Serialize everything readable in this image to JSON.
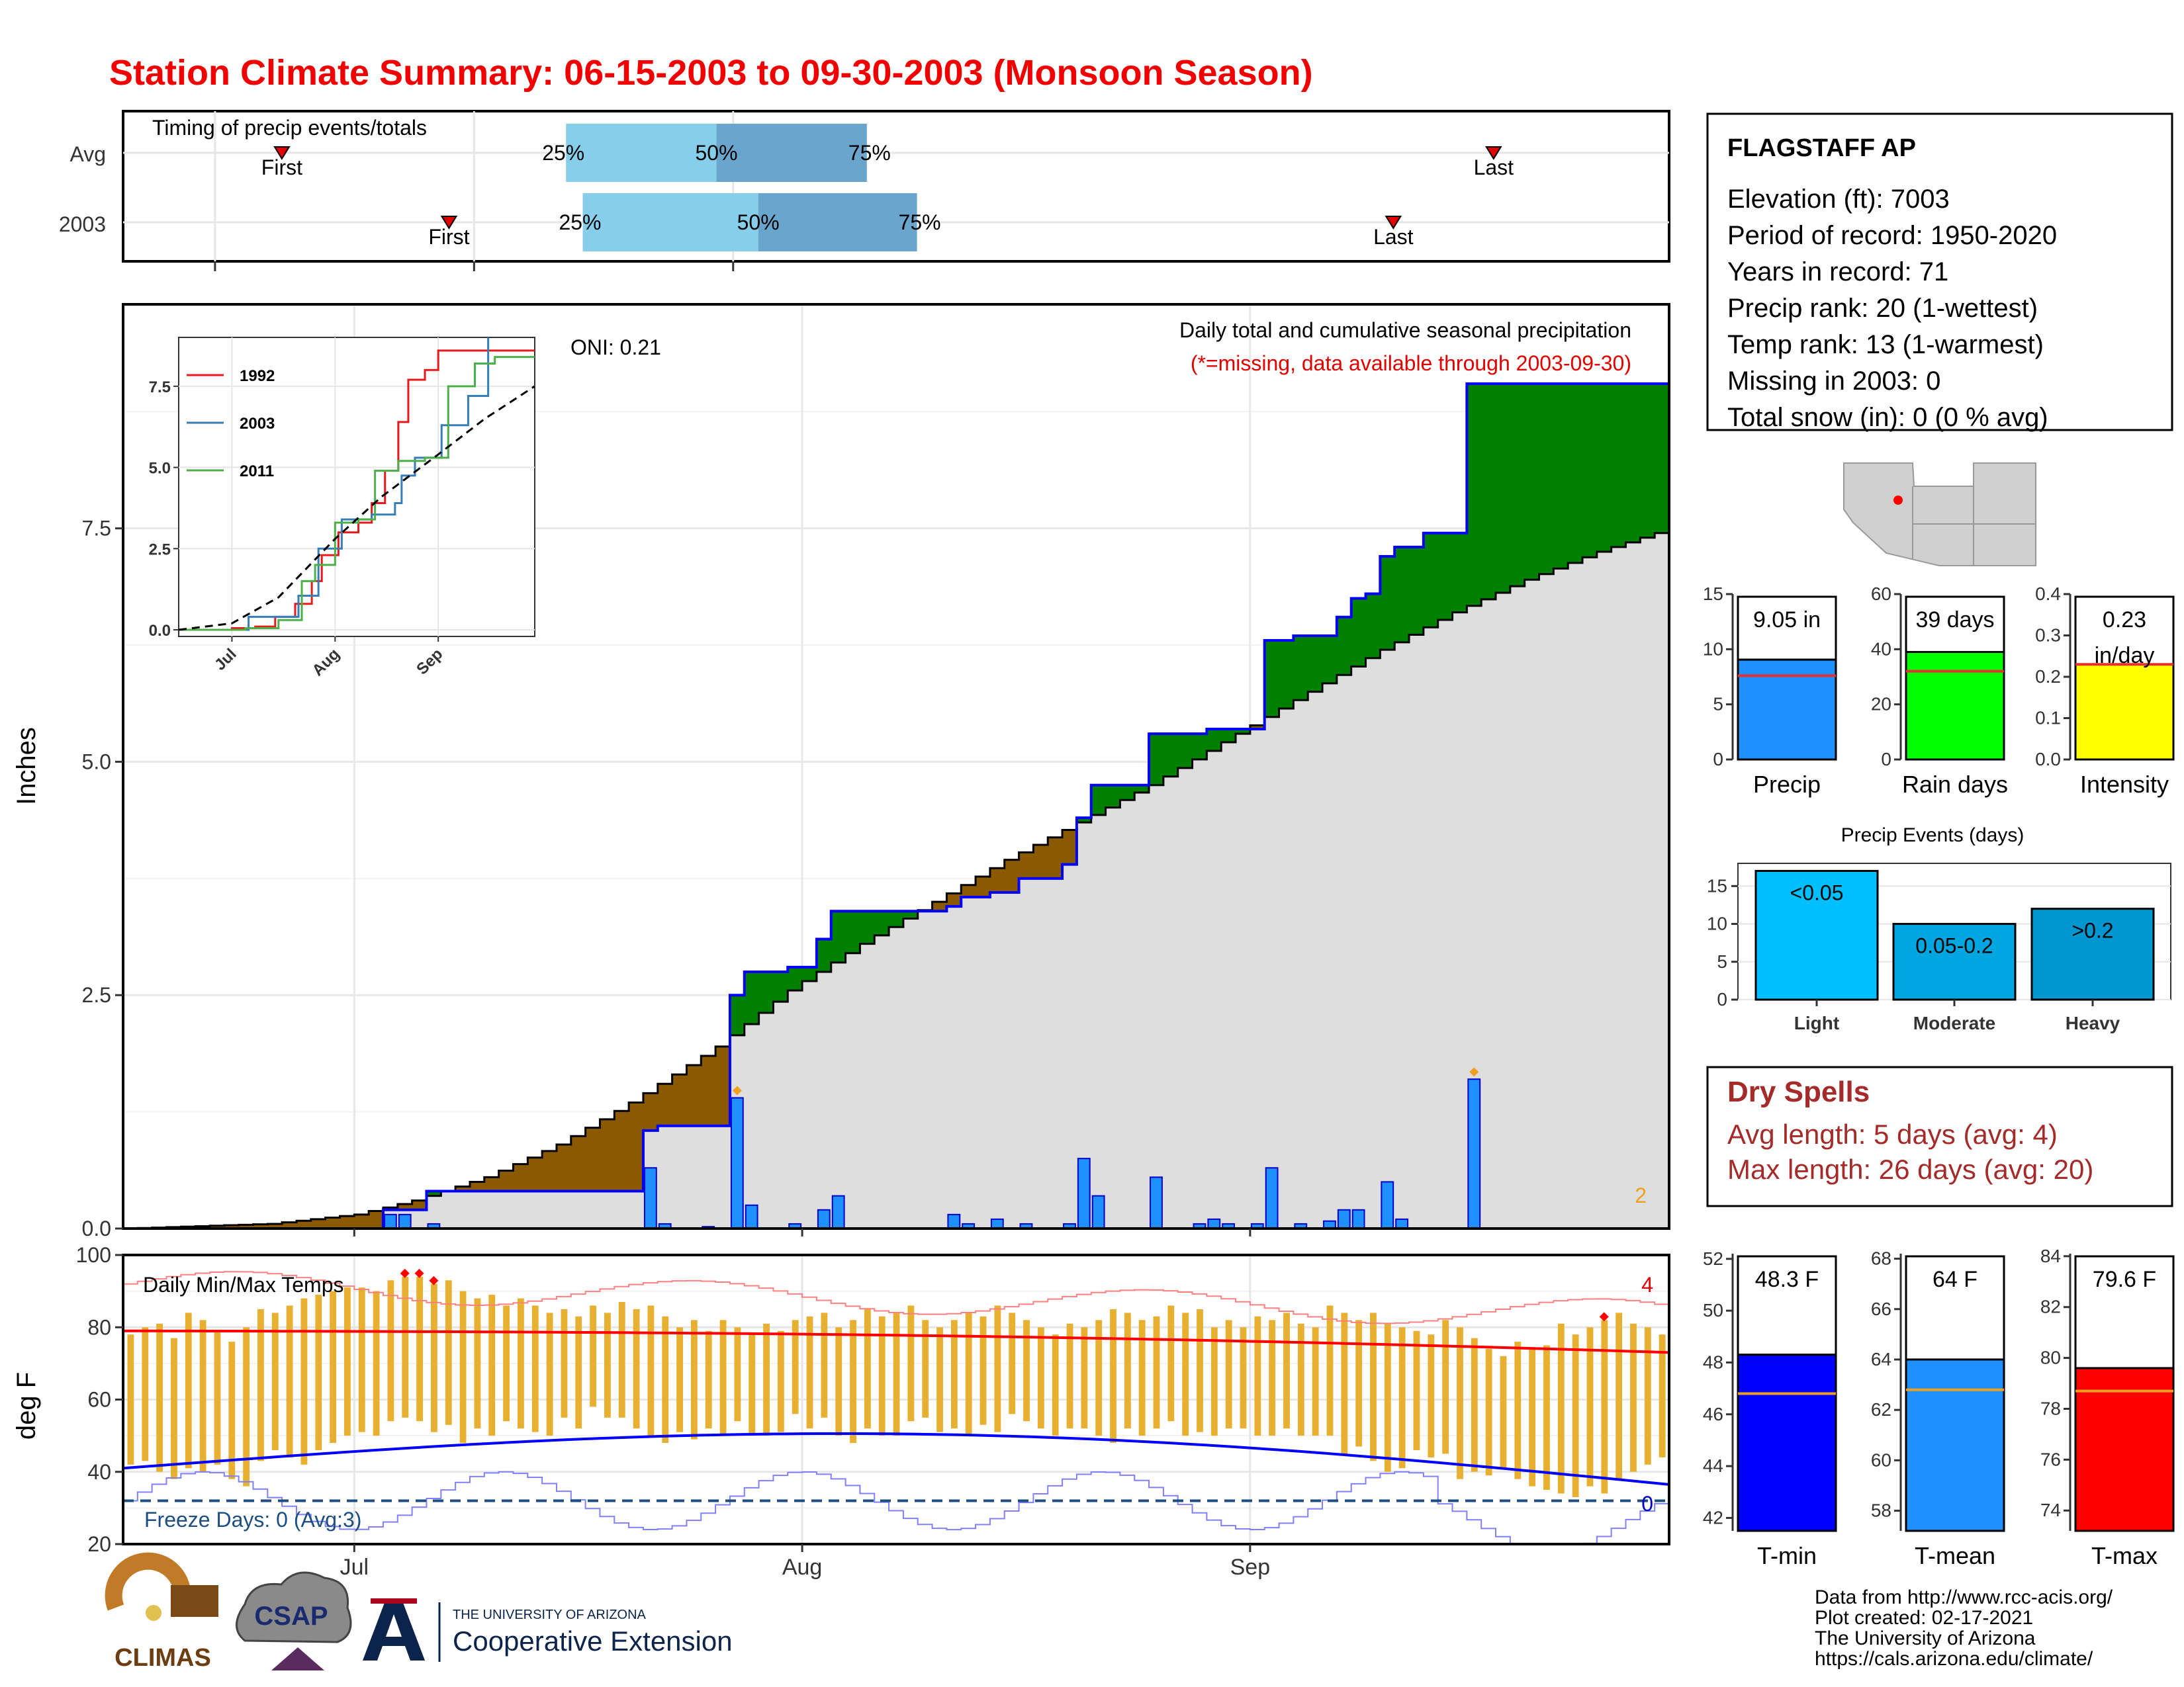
{
  "title": "Station Climate Summary: 06-15-2003 to 09-30-2003 (Monsoon Season)",
  "colors": {
    "title": "#f00000",
    "precip_bar": "#1e90ff",
    "avg_above": "#008000",
    "avg_below": "#8b5a00",
    "normal_fill": "#dedede",
    "temp_bar": "#e8b030",
    "tmax_line": "#ff0000",
    "tmin_line": "#0000ff",
    "raindays": "#00ff00",
    "intensity": "#ffff00",
    "light": "#00bfff",
    "moderate": "#00a6e0",
    "heavy": "#0097d0",
    "tmean": "#1e90ff",
    "dryspell": "#a52a2a",
    "reference_line": "#e53030"
  },
  "timing": {
    "label": "Timing of precip events/totals",
    "rows": [
      {
        "label": "Avg",
        "first": "First",
        "last": "Last",
        "p25": "25%",
        "p50": "50%",
        "p75": "75%"
      },
      {
        "label": "2003",
        "first": "First",
        "last": "Last",
        "p25": "25%",
        "p50": "50%",
        "p75": "75%"
      }
    ]
  },
  "main": {
    "ylabel": "Inches",
    "oni": "ONI: 0.21",
    "subtitle": "Daily total and cumulative seasonal precipitation",
    "missing_note": "(*=missing, data available through 2003-09-30)",
    "corner_count": "2"
  },
  "inset": {
    "legend": [
      "1992",
      "2003",
      "2011"
    ]
  },
  "temps": {
    "label": "Daily Min/Max Temps",
    "ylabel": "deg F",
    "freeze": "Freeze Days: 0 (Avg:3)",
    "record_high_count": "4",
    "record_low_count": "0"
  },
  "station": {
    "name": "FLAGSTAFF AP",
    "lines": [
      "Elevation (ft): 7003",
      "Period of record: 1950-2020",
      "Years in record: 71",
      "Precip rank: 20 (1-wettest)",
      "Temp rank: 13 (1-warmest)",
      "Missing in 2003: 0",
      "Total snow (in): 0 (0 % avg)"
    ]
  },
  "stat_panels": [
    {
      "label": "Precip",
      "value_text": "9.05 in",
      "value": 9.05,
      "avg": 7.6,
      "ylim": [
        0,
        15
      ],
      "ticks": [
        "0",
        "5",
        "10",
        "15"
      ]
    },
    {
      "label": "Rain days",
      "value_text": "39 days",
      "value": 39,
      "avg": 32,
      "ylim": [
        0,
        60
      ],
      "ticks": [
        "0",
        "20",
        "40",
        "60"
      ]
    },
    {
      "label": "Intensity",
      "value_text": "0.23",
      "value_text2": "in/day",
      "value": 0.23,
      "avg": 0.23,
      "ylim": [
        0,
        0.4
      ],
      "ticks": [
        "0.0",
        "0.1",
        "0.2",
        "0.3",
        "0.4"
      ]
    }
  ],
  "events": {
    "title": "Precip Events (days)",
    "ticks": [
      "0",
      "5",
      "10",
      "15"
    ],
    "bars": [
      {
        "name": "Light",
        "label": "<0.05",
        "value": 17
      },
      {
        "name": "Moderate",
        "label": "0.05-0.2",
        "value": 10
      },
      {
        "name": "Heavy",
        "label": ">0.2",
        "value": 12
      }
    ]
  },
  "dry_spells": {
    "title": "Dry Spells",
    "avg_line": "Avg length: 5 days (avg: 4)",
    "max_line": "Max length: 26 days (avg: 20)"
  },
  "temp_panels": [
    {
      "label": "T-min",
      "value_text": "48.3 F",
      "value": 48.3,
      "avg": 46.8,
      "ylim": [
        41.5,
        52.2
      ],
      "ticks": [
        "42",
        "44",
        "46",
        "48",
        "50",
        "52"
      ]
    },
    {
      "label": "T-mean",
      "value_text": "64 F",
      "value": 64,
      "avg": 62.8,
      "ylim": [
        57.2,
        68.2
      ],
      "ticks": [
        "58",
        "60",
        "62",
        "64",
        "66",
        "68"
      ]
    },
    {
      "label": "T-max",
      "value_text": "79.6 F",
      "value": 79.6,
      "avg": 78.7,
      "ylim": [
        73.2,
        84.1
      ],
      "ticks": [
        "74",
        "76",
        "78",
        "80",
        "82",
        "84"
      ]
    }
  ],
  "footer": {
    "lines": [
      "Data from http://www.rcc-acis.org/",
      "Plot created: 02-17-2021",
      "The University of Arizona",
      "https://cals.arizona.edu/climate/"
    ],
    "logo_climas": "CLIMAS",
    "logo_csap": "CSAP",
    "ua_small": "THE UNIVERSITY OF ARIZONA",
    "ua_big": "Cooperative Extension"
  },
  "chart_data": [
    {
      "type": "area",
      "title": "Daily total and cumulative seasonal precipitation",
      "ylabel": "Inches",
      "x_range": [
        "2003-06-15",
        "2003-09-30"
      ],
      "x_ticks": [
        "Jul",
        "Aug",
        "Sep"
      ],
      "y_ticks": [
        "0.0",
        "2.5",
        "5.0",
        "7.5"
      ],
      "ylim": [
        0,
        9.9
      ],
      "cumulative_observed": [
        [
          "2003-06-15",
          0
        ],
        [
          "2003-07-02",
          0
        ],
        [
          "2003-07-03",
          0.2
        ],
        [
          "2003-07-05",
          0.2
        ],
        [
          "2003-07-06",
          0.4
        ],
        [
          "2003-07-20",
          0.4
        ],
        [
          "2003-07-21",
          1.05
        ],
        [
          "2003-07-22",
          1.1
        ],
        [
          "2003-07-26",
          1.1
        ],
        [
          "2003-07-27",
          2.5
        ],
        [
          "2003-07-28",
          2.75
        ],
        [
          "2003-07-31",
          2.8
        ],
        [
          "2003-08-02",
          3.1
        ],
        [
          "2003-08-03",
          3.4
        ],
        [
          "2003-08-11",
          3.45
        ],
        [
          "2003-08-12",
          3.55
        ],
        [
          "2003-08-14",
          3.6
        ],
        [
          "2003-08-16",
          3.75
        ],
        [
          "2003-08-19",
          3.9
        ],
        [
          "2003-08-20",
          4.4
        ],
        [
          "2003-08-21",
          4.75
        ],
        [
          "2003-08-25",
          5.3
        ],
        [
          "2003-08-28",
          5.3
        ],
        [
          "2003-08-29",
          5.35
        ],
        [
          "2003-08-30",
          5.35
        ],
        [
          "2003-09-01",
          5.35
        ],
        [
          "2003-09-02",
          6.3
        ],
        [
          "2003-09-04",
          6.35
        ],
        [
          "2003-09-06",
          6.35
        ],
        [
          "2003-09-07",
          6.55
        ],
        [
          "2003-09-08",
          6.75
        ],
        [
          "2003-09-09",
          6.8
        ],
        [
          "2003-09-10",
          7.2
        ],
        [
          "2003-09-11",
          7.3
        ],
        [
          "2003-09-13",
          7.45
        ],
        [
          "2003-09-15",
          7.45
        ],
        [
          "2003-09-16",
          9.05
        ],
        [
          "2003-09-30",
          9.05
        ]
      ],
      "cumulative_normal": [
        [
          "2003-06-15",
          0
        ],
        [
          "2003-06-25",
          0.05
        ],
        [
          "2003-07-01",
          0.15
        ],
        [
          "2003-07-05",
          0.3
        ],
        [
          "2003-07-10",
          0.55
        ],
        [
          "2003-07-15",
          0.9
        ],
        [
          "2003-07-20",
          1.35
        ],
        [
          "2003-07-26",
          1.95
        ],
        [
          "2003-07-31",
          2.55
        ],
        [
          "2003-08-05",
          3.05
        ],
        [
          "2003-08-10",
          3.5
        ],
        [
          "2003-08-15",
          3.95
        ],
        [
          "2003-08-20",
          4.35
        ],
        [
          "2003-08-25",
          4.75
        ],
        [
          "2003-08-31",
          5.3
        ],
        [
          "2003-09-05",
          5.75
        ],
        [
          "2003-09-10",
          6.2
        ],
        [
          "2003-09-15",
          6.6
        ],
        [
          "2003-09-20",
          6.95
        ],
        [
          "2003-09-25",
          7.25
        ],
        [
          "2003-09-30",
          7.5
        ]
      ],
      "daily_precip": [
        [
          "2003-07-03",
          0.15
        ],
        [
          "2003-07-04",
          0.15
        ],
        [
          "2003-07-06",
          0.05
        ],
        [
          "2003-07-21",
          0.65
        ],
        [
          "2003-07-22",
          0.05
        ],
        [
          "2003-07-25",
          0.02
        ],
        [
          "2003-07-27",
          1.4
        ],
        [
          "2003-07-28",
          0.25
        ],
        [
          "2003-07-31",
          0.05
        ],
        [
          "2003-08-02",
          0.2
        ],
        [
          "2003-08-03",
          0.35
        ],
        [
          "2003-08-11",
          0.15
        ],
        [
          "2003-08-12",
          0.05
        ],
        [
          "2003-08-14",
          0.1
        ],
        [
          "2003-08-16",
          0.05
        ],
        [
          "2003-08-19",
          0.05
        ],
        [
          "2003-08-20",
          0.75
        ],
        [
          "2003-08-21",
          0.35
        ],
        [
          "2003-08-25",
          0.55
        ],
        [
          "2003-08-28",
          0.05
        ],
        [
          "2003-08-29",
          0.1
        ],
        [
          "2003-08-30",
          0.05
        ],
        [
          "2003-09-01",
          0.05
        ],
        [
          "2003-09-02",
          0.65
        ],
        [
          "2003-09-04",
          0.05
        ],
        [
          "2003-09-06",
          0.08
        ],
        [
          "2003-09-07",
          0.2
        ],
        [
          "2003-09-08",
          0.2
        ],
        [
          "2003-09-10",
          0.5
        ],
        [
          "2003-09-11",
          0.1
        ],
        [
          "2003-09-16",
          1.6
        ]
      ]
    },
    {
      "type": "line",
      "legend": [
        "1992",
        "2003",
        "2011"
      ],
      "x_ticks": [
        "Jul",
        "Aug",
        "Sep"
      ],
      "y_ticks": [
        "0.0",
        "2.5",
        "5.0",
        "7.5"
      ],
      "ylim": [
        0,
        8.8
      ],
      "x_range": [
        "06-15",
        "09-30"
      ],
      "series": [
        {
          "name": "1992",
          "values": [
            [
              "06-15",
              0
            ],
            [
              "07-01",
              0.05
            ],
            [
              "07-08",
              0.1
            ],
            [
              "07-14",
              0.4
            ],
            [
              "07-20",
              0.8
            ],
            [
              "07-25",
              1.5
            ],
            [
              "07-28",
              2.3
            ],
            [
              "08-02",
              3.0
            ],
            [
              "08-08",
              3.3
            ],
            [
              "08-12",
              3.9
            ],
            [
              "08-16",
              4.9
            ],
            [
              "08-20",
              6.4
            ],
            [
              "08-23",
              7.7
            ],
            [
              "08-28",
              8.0
            ],
            [
              "09-01",
              8.6
            ],
            [
              "09-30",
              8.6
            ]
          ]
        },
        {
          "name": "2003",
          "values": [
            [
              "06-15",
              0
            ],
            [
              "07-02",
              0
            ],
            [
              "07-06",
              0.4
            ],
            [
              "07-21",
              1.05
            ],
            [
              "07-27",
              2.5
            ],
            [
              "08-03",
              3.4
            ],
            [
              "08-12",
              3.55
            ],
            [
              "08-19",
              3.9
            ],
            [
              "08-21",
              4.75
            ],
            [
              "08-25",
              5.3
            ],
            [
              "09-02",
              6.3
            ],
            [
              "09-10",
              7.2
            ],
            [
              "09-16",
              9.05
            ],
            [
              "09-30",
              9.05
            ]
          ]
        },
        {
          "name": "2011",
          "values": [
            [
              "06-15",
              0
            ],
            [
              "07-05",
              0.05
            ],
            [
              "07-15",
              0.3
            ],
            [
              "07-22",
              1.5
            ],
            [
              "07-26",
              2.0
            ],
            [
              "08-01",
              3.3
            ],
            [
              "08-08",
              3.4
            ],
            [
              "08-13",
              4.9
            ],
            [
              "08-20",
              5.2
            ],
            [
              "08-28",
              5.3
            ],
            [
              "09-04",
              7.5
            ],
            [
              "09-12",
              8.2
            ],
            [
              "09-18",
              8.4
            ],
            [
              "09-30",
              8.4
            ]
          ]
        },
        {
          "name": "",
          "values": [
            [
              "06-15",
              0
            ],
            [
              "07-01",
              0.2
            ],
            [
              "07-15",
              1.0
            ],
            [
              "08-01",
              2.8
            ],
            [
              "08-15",
              4.1
            ],
            [
              "09-01",
              5.4
            ],
            [
              "09-15",
              6.5
            ],
            [
              "09-30",
              7.5
            ]
          ]
        }
      ]
    },
    {
      "type": "bar",
      "title": "Daily Min/Max Temps",
      "ylabel": "deg F",
      "ylim": [
        20,
        100
      ],
      "y_ticks": [
        "20",
        "40",
        "60",
        "80",
        "100"
      ],
      "x_ticks": [
        "Jul",
        "Aug",
        "Sep"
      ],
      "x_range": [
        "2003-06-15",
        "2003-09-30"
      ],
      "daily_max": [
        78,
        80,
        81,
        77,
        84,
        82,
        79,
        76,
        80,
        85,
        84,
        86,
        88,
        89,
        90,
        91,
        91,
        90,
        93,
        94,
        94,
        92,
        93,
        90,
        88,
        89,
        86,
        88,
        86,
        84,
        85,
        83,
        86,
        84,
        87,
        85,
        86,
        83,
        80,
        82,
        79,
        82,
        80,
        78,
        81,
        79,
        82,
        83,
        84,
        80,
        82,
        85,
        83,
        84,
        86,
        82,
        80,
        82,
        84,
        83,
        86,
        84,
        82,
        80,
        78,
        81,
        80,
        82,
        85,
        84,
        82,
        83,
        86,
        84,
        85,
        80,
        82,
        80,
        83,
        82,
        84,
        81,
        80,
        86,
        84,
        82,
        84,
        81,
        80,
        79,
        78,
        82,
        80,
        77,
        74,
        72,
        76,
        74,
        75,
        81,
        78,
        80,
        82,
        84,
        81,
        80,
        78
      ],
      "daily_min": [
        42,
        43,
        40,
        38,
        41,
        40,
        42,
        38,
        36,
        43,
        46,
        44,
        42,
        46,
        48,
        50,
        51,
        50,
        54,
        55,
        54,
        51,
        53,
        48,
        52,
        50,
        54,
        52,
        51,
        50,
        55,
        52,
        58,
        55,
        55,
        52,
        50,
        48,
        51,
        49,
        52,
        50,
        54,
        50,
        50,
        51,
        56,
        52,
        55,
        50,
        48,
        52,
        50,
        50,
        54,
        55,
        51,
        52,
        50,
        53,
        51,
        56,
        54,
        52,
        50,
        52,
        52,
        50,
        48,
        52,
        50,
        52,
        54,
        50,
        51,
        50,
        52,
        52,
        50,
        50,
        52,
        50,
        50,
        50,
        45,
        47,
        43,
        40,
        41,
        46,
        44,
        45,
        38,
        40,
        39,
        41,
        38,
        36,
        35,
        34,
        33,
        36,
        34,
        38,
        40,
        42,
        44
      ],
      "avg_max_start": 79,
      "avg_max_end": 71,
      "avg_min_start": 41,
      "avg_min_end": 36,
      "freeze_line": 32
    },
    {
      "type": "bar",
      "title": "Precip Events (days)",
      "categories": [
        "Light",
        "Moderate",
        "Heavy"
      ],
      "values": [
        17,
        10,
        12
      ],
      "ylim": [
        0,
        18
      ]
    }
  ]
}
